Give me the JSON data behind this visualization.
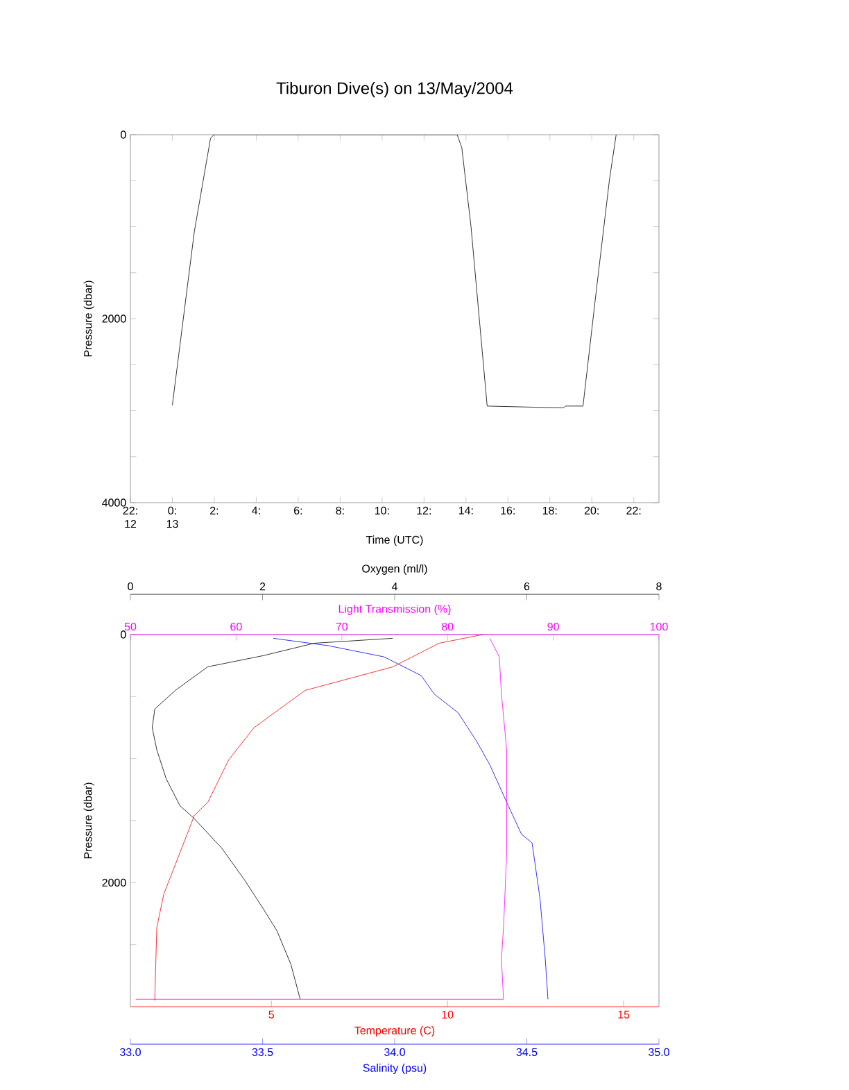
{
  "chart_data": [
    {
      "type": "line",
      "title": "Tiburon Dive(s) on 13/May/2004",
      "xlabel": "Time (UTC)",
      "ylabel": "Pressure (dbar)",
      "x": [
        0,
        1.05,
        1.82,
        1.98,
        13.58,
        13.8,
        14.24,
        15.01,
        18.64,
        18.75,
        19.58,
        20.18,
        20.84,
        21.16
      ],
      "values": [
        2940,
        1050,
        40,
        0,
        0,
        140,
        1000,
        2950,
        2970,
        2950,
        2950,
        1760,
        490,
        0
      ],
      "color": "#000000",
      "xlim": [
        -2,
        23.2
      ],
      "xticks": [
        {
          "value": -2,
          "label": "22: 12"
        },
        {
          "value": 0,
          "label": "0: 13"
        },
        {
          "value": 2,
          "label": "2:"
        },
        {
          "value": 4,
          "label": "4:"
        },
        {
          "value": 6,
          "label": "6:"
        },
        {
          "value": 8,
          "label": "8:"
        },
        {
          "value": 10,
          "label": "10:"
        },
        {
          "value": 12,
          "label": "12:"
        },
        {
          "value": 14,
          "label": "14:"
        },
        {
          "value": 16,
          "label": "16:"
        },
        {
          "value": 18,
          "label": "18:"
        },
        {
          "value": 20,
          "label": "20:"
        },
        {
          "value": 22,
          "label": "22:"
        }
      ],
      "ylim": [
        4000,
        0
      ],
      "yticks": [
        0,
        {
          "value": 500,
          "label": null
        },
        {
          "value": 1000,
          "label": null
        },
        {
          "value": 1500,
          "label": null
        },
        2000,
        {
          "value": 2500,
          "label": null
        },
        {
          "value": 3000,
          "label": null
        },
        {
          "value": 3500,
          "label": null
        },
        4000
      ]
    },
    {
      "type": "line",
      "xlabel": "Temperature (C)",
      "x2label": "Oxygen (ml/l)",
      "ylabel": "Pressure (dbar)",
      "ylim": [
        3000,
        0
      ],
      "yticks": [
        0,
        {
          "value": 500,
          "label": null
        },
        {
          "value": 1000,
          "label": null
        },
        {
          "value": 1500,
          "label": null
        },
        2000,
        {
          "value": 2500,
          "label": null
        }
      ],
      "xlim": [
        1,
        16
      ],
      "xticks": [
        5,
        10,
        15
      ],
      "x2lim": [
        0,
        8
      ],
      "x2ticks": [
        0,
        2,
        4,
        6,
        8
      ],
      "series": [
        {
          "color": "#ff0000",
          "x": [
            11.0,
            9.76,
            8.45,
            5.96,
            4.51,
            3.79,
            3.2,
            2.81,
            2.61,
            1.95,
            1.75,
            1.69
          ],
          "values": [
            0,
            70,
            260,
            450,
            750,
            1010,
            1350,
            1460,
            1610,
            2090,
            2360,
            2950
          ]
        },
        {
          "axis": "x2",
          "color": "#000000",
          "x": [
            3.97,
            2.78,
            2.01,
            1.17,
            0.68,
            0.37,
            0.33,
            0.4,
            0.54,
            0.75,
            0.96,
            1.38,
            1.73,
            2.01,
            2.22,
            2.43,
            2.57
          ],
          "values": [
            30,
            70,
            170,
            260,
            450,
            600,
            750,
            930,
            1160,
            1380,
            1480,
            1720,
            1980,
            2210,
            2390,
            2660,
            2940
          ]
        }
      ]
    },
    {
      "type": "line",
      "xlabel": "Salinity (psu)",
      "x2label": "Light Transmission (%)",
      "tick_labels": "x",
      "ylim": [
        3000,
        0
      ],
      "xlim": [
        33.0,
        35.0
      ],
      "xticks": [
        {
          "value": 33.0,
          "label": "33.0"
        },
        {
          "value": 33.5,
          "label": "33.5"
        },
        {
          "value": 34.0,
          "label": "34.0"
        },
        {
          "value": 34.5,
          "label": "34.5"
        },
        {
          "value": 35.0,
          "label": "35.0"
        }
      ],
      "x2lim": [
        50,
        100
      ],
      "x2ticks": [
        50,
        60,
        70,
        80,
        90,
        100
      ],
      "series": [
        {
          "color": "#0000ff",
          "x": [
            33.54,
            33.75,
            33.96,
            34.1,
            34.15,
            34.24,
            34.31,
            34.36,
            34.43,
            34.48,
            34.52,
            34.55,
            34.57,
            34.58
          ],
          "values": [
            30,
            90,
            180,
            330,
            480,
            630,
            860,
            1050,
            1380,
            1610,
            1680,
            2130,
            2620,
            2940
          ]
        },
        {
          "axis": "x2",
          "color": "#ff00ff",
          "x": [
            84.0,
            84.9,
            85.1,
            85.6,
            85.6,
            85.3,
            85.1,
            85.3,
            50.5
          ],
          "values": [
            30,
            180,
            480,
            930,
            1760,
            2360,
            2620,
            2940,
            2940
          ]
        }
      ]
    }
  ]
}
